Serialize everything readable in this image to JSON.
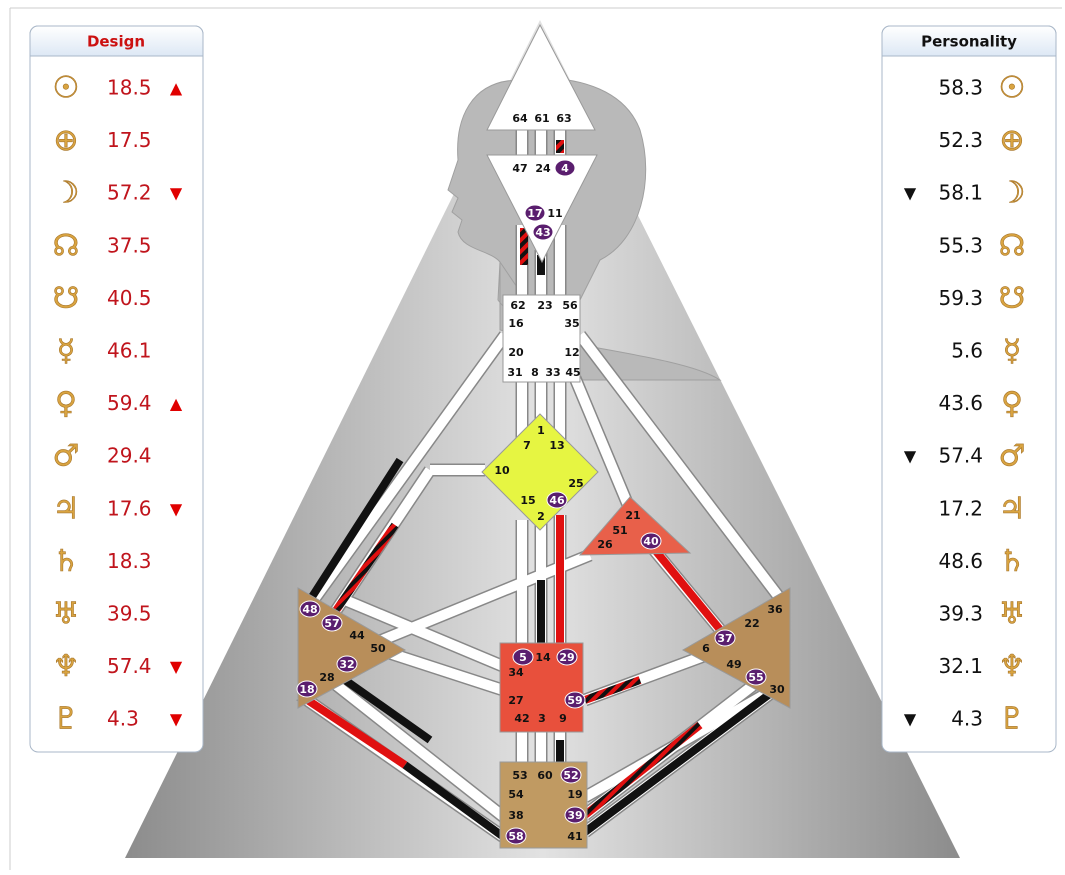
{
  "design": {
    "title": "Design",
    "rows": [
      {
        "symbol": "☉",
        "value": "18.5",
        "arrow": "▲"
      },
      {
        "symbol": "⊕",
        "value": "17.5"
      },
      {
        "symbol": "☽",
        "value": "57.2",
        "arrow": "▼"
      },
      {
        "symbol": "☊",
        "value": "37.5"
      },
      {
        "symbol": "☋",
        "value": "40.5"
      },
      {
        "symbol": "☿",
        "value": "46.1"
      },
      {
        "symbol": "♀",
        "value": "59.4",
        "arrow": "▲"
      },
      {
        "symbol": "♂",
        "value": "29.4"
      },
      {
        "symbol": "♃",
        "value": "17.6",
        "arrow": "▼"
      },
      {
        "symbol": "♄",
        "value": "18.3"
      },
      {
        "symbol": "♅",
        "value": "39.5"
      },
      {
        "symbol": "♆",
        "value": "57.4",
        "arrow": "▼"
      },
      {
        "symbol": "♇",
        "value": "4.3",
        "arrow": "▼"
      }
    ]
  },
  "personality": {
    "title": "Personality",
    "rows": [
      {
        "symbol": "☉",
        "value": "58.3"
      },
      {
        "symbol": "⊕",
        "value": "52.3"
      },
      {
        "symbol": "☽",
        "value": "58.1",
        "arrow": "▼"
      },
      {
        "symbol": "☊",
        "value": "55.3"
      },
      {
        "symbol": "☋",
        "value": "59.3"
      },
      {
        "symbol": "☿",
        "value": "5.6"
      },
      {
        "symbol": "♀",
        "value": "43.6"
      },
      {
        "symbol": "♂",
        "value": "57.4",
        "arrow": "▼"
      },
      {
        "symbol": "♃",
        "value": "17.2"
      },
      {
        "symbol": "♄",
        "value": "48.6"
      },
      {
        "symbol": "♅",
        "value": "39.3"
      },
      {
        "symbol": "♆",
        "value": "32.1"
      },
      {
        "symbol": "♇",
        "value": "4.3",
        "arrow": "▼"
      }
    ]
  },
  "centers": [
    {
      "color": "#ffffff",
      "gates": [
        {
          "n": 64
        },
        {
          "n": 61
        },
        {
          "n": 63
        }
      ]
    },
    {
      "color": "#ffffff",
      "gates": [
        {
          "n": 47
        },
        {
          "n": 24
        },
        {
          "n": 4,
          "circled": true
        },
        {
          "n": 17,
          "circled": true
        },
        {
          "n": 11
        },
        {
          "n": 43,
          "circled": true
        }
      ]
    },
    {
      "color": "#ffffff",
      "gates": [
        {
          "n": 62
        },
        {
          "n": 23
        },
        {
          "n": 56
        },
        {
          "n": 16
        },
        {
          "n": 35
        },
        {
          "n": 20
        },
        {
          "n": 12
        },
        {
          "n": 31
        },
        {
          "n": 8
        },
        {
          "n": 33
        },
        {
          "n": 45
        }
      ]
    },
    {
      "color": "#e6f542",
      "gates": [
        {
          "n": 1
        },
        {
          "n": 7
        },
        {
          "n": 13
        },
        {
          "n": 10
        },
        {
          "n": 25
        },
        {
          "n": 15
        },
        {
          "n": 46,
          "circled": true
        },
        {
          "n": 2
        }
      ]
    },
    {
      "color": "#e8604a",
      "gates": [
        {
          "n": 21
        },
        {
          "n": 51
        },
        {
          "n": 26
        },
        {
          "n": 40,
          "circled": true
        }
      ]
    },
    {
      "color": "#b88e5a",
      "gates": [
        {
          "n": 48,
          "circled": true
        },
        {
          "n": 57,
          "circled": true
        },
        {
          "n": 44
        },
        {
          "n": 50
        },
        {
          "n": 32,
          "circled": true
        },
        {
          "n": 28
        },
        {
          "n": 18,
          "circled": true
        }
      ]
    },
    {
      "color": "#b88e5a",
      "gates": [
        {
          "n": 36
        },
        {
          "n": 22
        },
        {
          "n": 37,
          "circled": true
        },
        {
          "n": 6
        },
        {
          "n": 49
        },
        {
          "n": 55,
          "circled": true
        },
        {
          "n": 30
        }
      ]
    },
    {
      "color": "#e8503c",
      "gates": [
        {
          "n": 5,
          "circled": true
        },
        {
          "n": 14
        },
        {
          "n": 29,
          "circled": true
        },
        {
          "n": 34
        },
        {
          "n": 27
        },
        {
          "n": 59,
          "circled": true
        },
        {
          "n": 42
        },
        {
          "n": 3
        },
        {
          "n": 9
        }
      ]
    },
    {
      "color": "#c09a62",
      "gates": [
        {
          "n": 53
        },
        {
          "n": 60
        },
        {
          "n": 52,
          "circled": true
        },
        {
          "n": 54
        },
        {
          "n": 19
        },
        {
          "n": 38
        },
        {
          "n": 39,
          "circled": true
        },
        {
          "n": 58,
          "circled": true
        },
        {
          "n": 41
        }
      ]
    }
  ]
}
